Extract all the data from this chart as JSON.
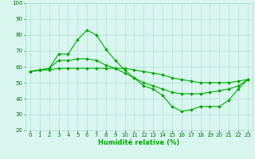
{
  "title": "",
  "xlabel": "Humidité relative (%)",
  "ylabel": "",
  "bg_color": "#d8f5f0",
  "grid_color": "#aaddcc",
  "line_color": "#00aa00",
  "x": [
    0,
    1,
    2,
    3,
    4,
    5,
    6,
    7,
    8,
    9,
    10,
    11,
    12,
    13,
    14,
    15,
    16,
    17,
    18,
    19,
    20,
    21,
    22,
    23
  ],
  "line1": [
    57,
    58,
    59,
    68,
    68,
    77,
    83,
    80,
    71,
    64,
    58,
    53,
    48,
    46,
    42,
    35,
    32,
    33,
    35,
    35,
    35,
    39,
    46,
    52
  ],
  "line2": [
    57,
    58,
    59,
    64,
    64,
    65,
    65,
    64,
    61,
    59,
    56,
    53,
    50,
    48,
    46,
    44,
    43,
    43,
    43,
    44,
    45,
    46,
    48,
    52
  ],
  "line3": [
    57,
    58,
    58,
    59,
    59,
    59,
    59,
    59,
    59,
    59,
    59,
    58,
    57,
    56,
    55,
    53,
    52,
    51,
    50,
    50,
    50,
    50,
    51,
    52
  ],
  "ylim": [
    20,
    100
  ],
  "yticks": [
    20,
    30,
    40,
    50,
    60,
    70,
    80,
    90,
    100
  ],
  "xlim": [
    -0.5,
    23.5
  ],
  "marker": "D",
  "markersize": 1.8,
  "linewidth": 0.8,
  "xlabel_color": "#00aa00",
  "xlabel_fontsize": 6,
  "tick_fontsize": 5,
  "tick_color": "#007700"
}
